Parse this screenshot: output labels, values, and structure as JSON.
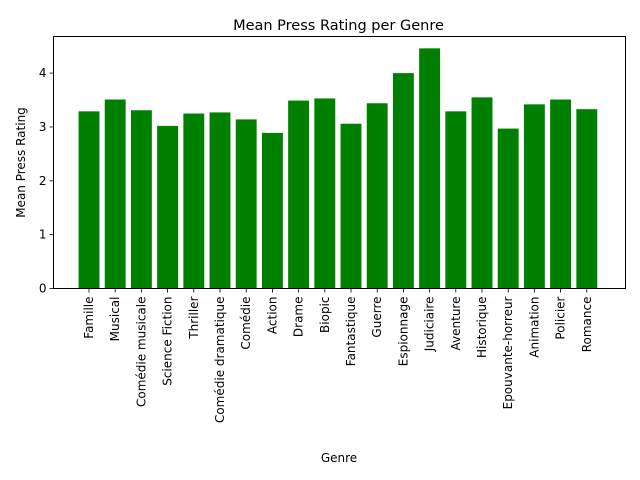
{
  "chart_data": {
    "type": "bar",
    "title": "Mean Press Rating per Genre",
    "xlabel": "Genre",
    "ylabel": "Mean Press Rating",
    "categories": [
      "Famille",
      "Musical",
      "Comédie musicale",
      "Science Fiction",
      "Thriller",
      "Comédie dramatique",
      "Comédie",
      "Action",
      "Drame",
      "Biopic",
      "Fantastique",
      "Guerre",
      "Espionnage",
      "Judiciaire",
      "Aventure",
      "Historique",
      "Epouvante-horreur",
      "Animation",
      "Policier",
      "Romance"
    ],
    "values": [
      3.29,
      3.51,
      3.31,
      3.02,
      3.25,
      3.27,
      3.14,
      2.89,
      3.49,
      3.53,
      3.06,
      3.44,
      4.0,
      4.46,
      3.29,
      3.55,
      2.97,
      3.42,
      3.51,
      3.33
    ],
    "ylim": [
      0,
      4.68
    ],
    "yticks": [
      0,
      1,
      2,
      3,
      4
    ],
    "bar_color": "#008000",
    "grid": false,
    "legend": "none"
  }
}
